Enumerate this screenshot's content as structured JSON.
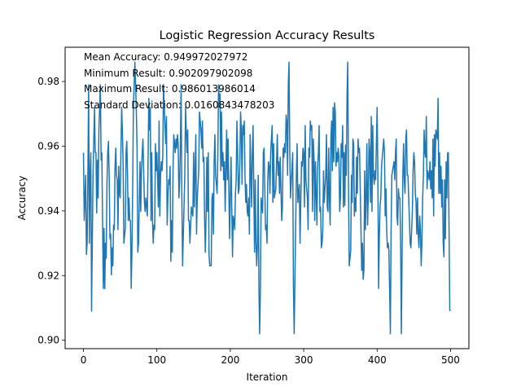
{
  "chart_data": {
    "type": "line",
    "title": "Logistic Regression Accuracy Results",
    "xlabel": "Iteration",
    "ylabel": "Accuracy",
    "xlim": [
      -25,
      525
    ],
    "ylim": [
      0.8974,
      0.9906
    ],
    "xticks": [
      "0",
      "100",
      "200",
      "300",
      "400",
      "500"
    ],
    "yticks": [
      "0.90",
      "0.92",
      "0.94",
      "0.96",
      "0.98"
    ],
    "grid": false,
    "annotations": [
      "Mean Accuracy: 0.949972027972",
      "Minimum Result: 0.902097902098",
      "Maximum Result: 0.986013986014",
      "Standard Deviation: 0.0160843478203"
    ],
    "series": [
      {
        "color": "#1f77b4",
        "noise_seed": 1,
        "x": [
          0,
          2,
          3,
          5,
          6,
          7,
          8,
          10,
          11,
          13,
          15,
          17,
          20,
          22,
          25,
          27,
          30,
          33,
          35,
          40,
          45,
          50,
          53,
          55,
          58,
          60,
          65,
          68,
          70,
          75,
          80,
          85,
          90,
          95,
          100,
          105,
          110,
          115,
          120,
          125,
          130,
          133,
          135,
          138,
          140,
          145,
          150,
          155,
          160,
          165,
          170,
          172,
          175,
          180,
          185,
          190,
          200,
          205,
          210,
          215,
          220,
          225,
          230,
          235,
          238,
          240,
          242,
          245,
          250,
          255,
          260,
          265,
          270,
          275,
          278,
          280,
          282,
          285,
          287,
          290,
          295,
          300,
          305,
          310,
          315,
          320,
          325,
          330,
          335,
          340,
          345,
          350,
          355,
          358,
          360,
          362,
          365,
          370,
          375,
          380,
          385,
          390,
          395,
          400,
          402,
          405,
          410,
          415,
          418,
          420,
          425,
          430,
          433,
          435,
          440,
          445,
          450,
          455,
          460,
          465,
          470,
          475,
          480,
          485,
          490,
          495,
          497,
          499
        ],
        "y": [
          0.958,
          0.944,
          0.951,
          0.93,
          0.951,
          0.979,
          0.93,
          0.958,
          0.909,
          0.951,
          0.972,
          0.958,
          0.944,
          0.972,
          0.958,
          0.916,
          0.93,
          0.958,
          0.951,
          0.923,
          0.951,
          0.944,
          0.965,
          0.93,
          0.958,
          0.951,
          0.916,
          0.972,
          0.986,
          0.93,
          0.958,
          0.944,
          0.965,
          0.93,
          0.958,
          0.951,
          0.972,
          0.944,
          0.937,
          0.958,
          0.944,
          0.979,
          0.923,
          0.951,
          0.965,
          0.93,
          0.958,
          0.944,
          0.965,
          0.937,
          0.958,
          0.923,
          0.944,
          0.951,
          0.972,
          0.958,
          0.944,
          0.937,
          0.958,
          0.965,
          0.951,
          0.944,
          0.958,
          0.93,
          0.951,
          0.902,
          0.944,
          0.958,
          0.93,
          0.958,
          0.944,
          0.951,
          0.937,
          0.958,
          0.951,
          0.986,
          0.944,
          0.958,
          0.902,
          0.951,
          0.93,
          0.958,
          0.944,
          0.965,
          0.937,
          0.958,
          0.93,
          0.951,
          0.944,
          0.972,
          0.958,
          0.944,
          0.958,
          0.951,
          0.986,
          0.923,
          0.951,
          0.944,
          0.958,
          0.93,
          0.944,
          0.958,
          0.951,
          0.972,
          0.916,
          0.944,
          0.958,
          0.93,
          0.902,
          0.951,
          0.958,
          0.944,
          0.902,
          0.951,
          0.965,
          0.93,
          0.958,
          0.944,
          0.923,
          0.958,
          0.951,
          0.944,
          0.965,
          0.958,
          0.93,
          0.944,
          0.958,
          0.909
        ]
      }
    ]
  }
}
